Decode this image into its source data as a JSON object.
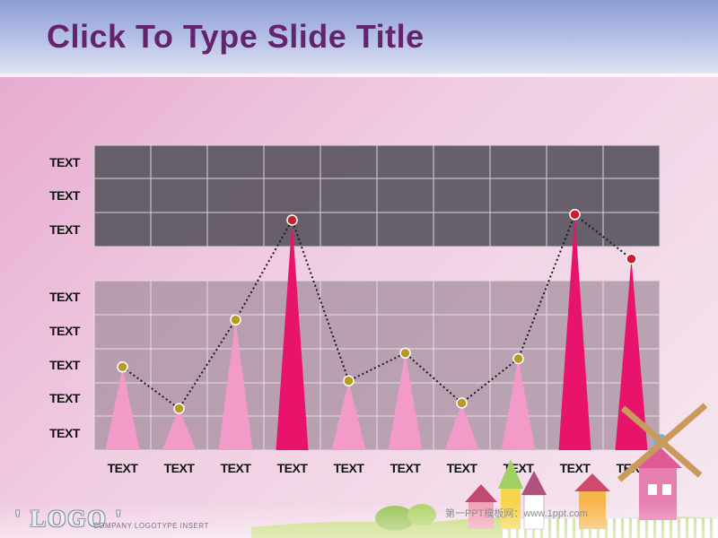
{
  "slide": {
    "title": "Click To Type Slide Title",
    "logo": "' LOGO '",
    "company_text": "COMPANY LOGOTYPE INSERT",
    "watermark": "第一PPT模板网：www.1ppt.com"
  },
  "colors": {
    "title": "#63236d",
    "pink_peak": "#f29ac8",
    "magenta_peak": "#e8146c",
    "top_panel": "#5f5962",
    "bottom_panel": "#a58f9f",
    "point_gold": "#b89a22",
    "point_red": "#d11b2a"
  },
  "chart_data": {
    "type": "line",
    "categories": [
      "TEXT",
      "TEXT",
      "TEXT",
      "TEXT",
      "TEXT",
      "TEXT",
      "TEXT",
      "TEXT",
      "TEXT",
      "TEXT"
    ],
    "y_tick_labels": [
      "TEXT",
      "TEXT",
      "TEXT",
      "TEXT",
      "TEXT",
      "TEXT",
      "TEXT",
      "TEXT"
    ],
    "values": [
      30,
      15,
      47,
      83,
      25,
      35,
      17,
      33,
      85,
      69
    ],
    "highlighted": [
      false,
      false,
      false,
      true,
      false,
      false,
      false,
      false,
      true,
      true
    ],
    "ylim": [
      0,
      110
    ],
    "grid": true,
    "line_style": "dotted"
  }
}
